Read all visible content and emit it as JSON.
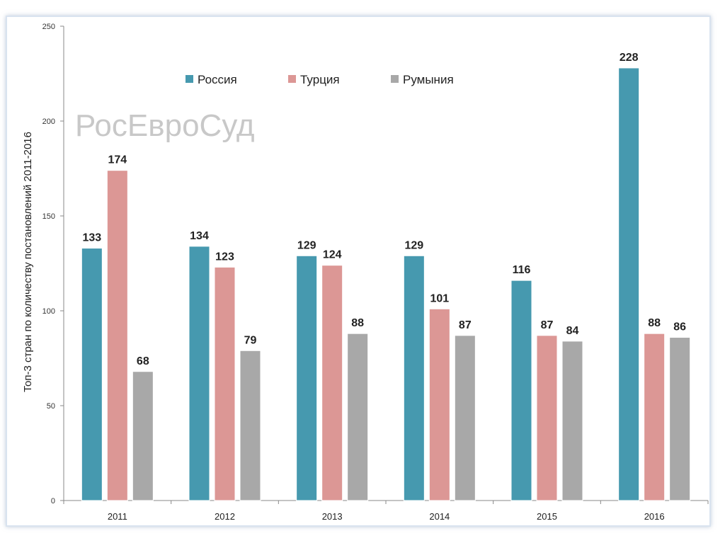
{
  "colors": {
    "Россия": "#4699af",
    "Турция": "#dc9795",
    "Румыния": "#a8a8a8"
  },
  "watermark": "РосЕвроСуд",
  "chart_data": {
    "type": "bar",
    "title": "",
    "xlabel": "",
    "ylabel": "Топ-3 стран по количеству постановлений 2011-2016",
    "categories": [
      "2011",
      "2012",
      "2013",
      "2014",
      "2015",
      "2016"
    ],
    "series": [
      {
        "name": "Россия",
        "values": [
          133,
          134,
          129,
          129,
          116,
          228
        ]
      },
      {
        "name": "Турция",
        "values": [
          174,
          123,
          124,
          101,
          87,
          88
        ]
      },
      {
        "name": "Румыния",
        "values": [
          68,
          79,
          88,
          87,
          84,
          86
        ]
      }
    ],
    "ylim": [
      0,
      250
    ],
    "yticks": [
      0,
      50,
      100,
      150,
      200,
      250
    ],
    "grid": false,
    "legend": "top-center",
    "data_labels": true
  }
}
